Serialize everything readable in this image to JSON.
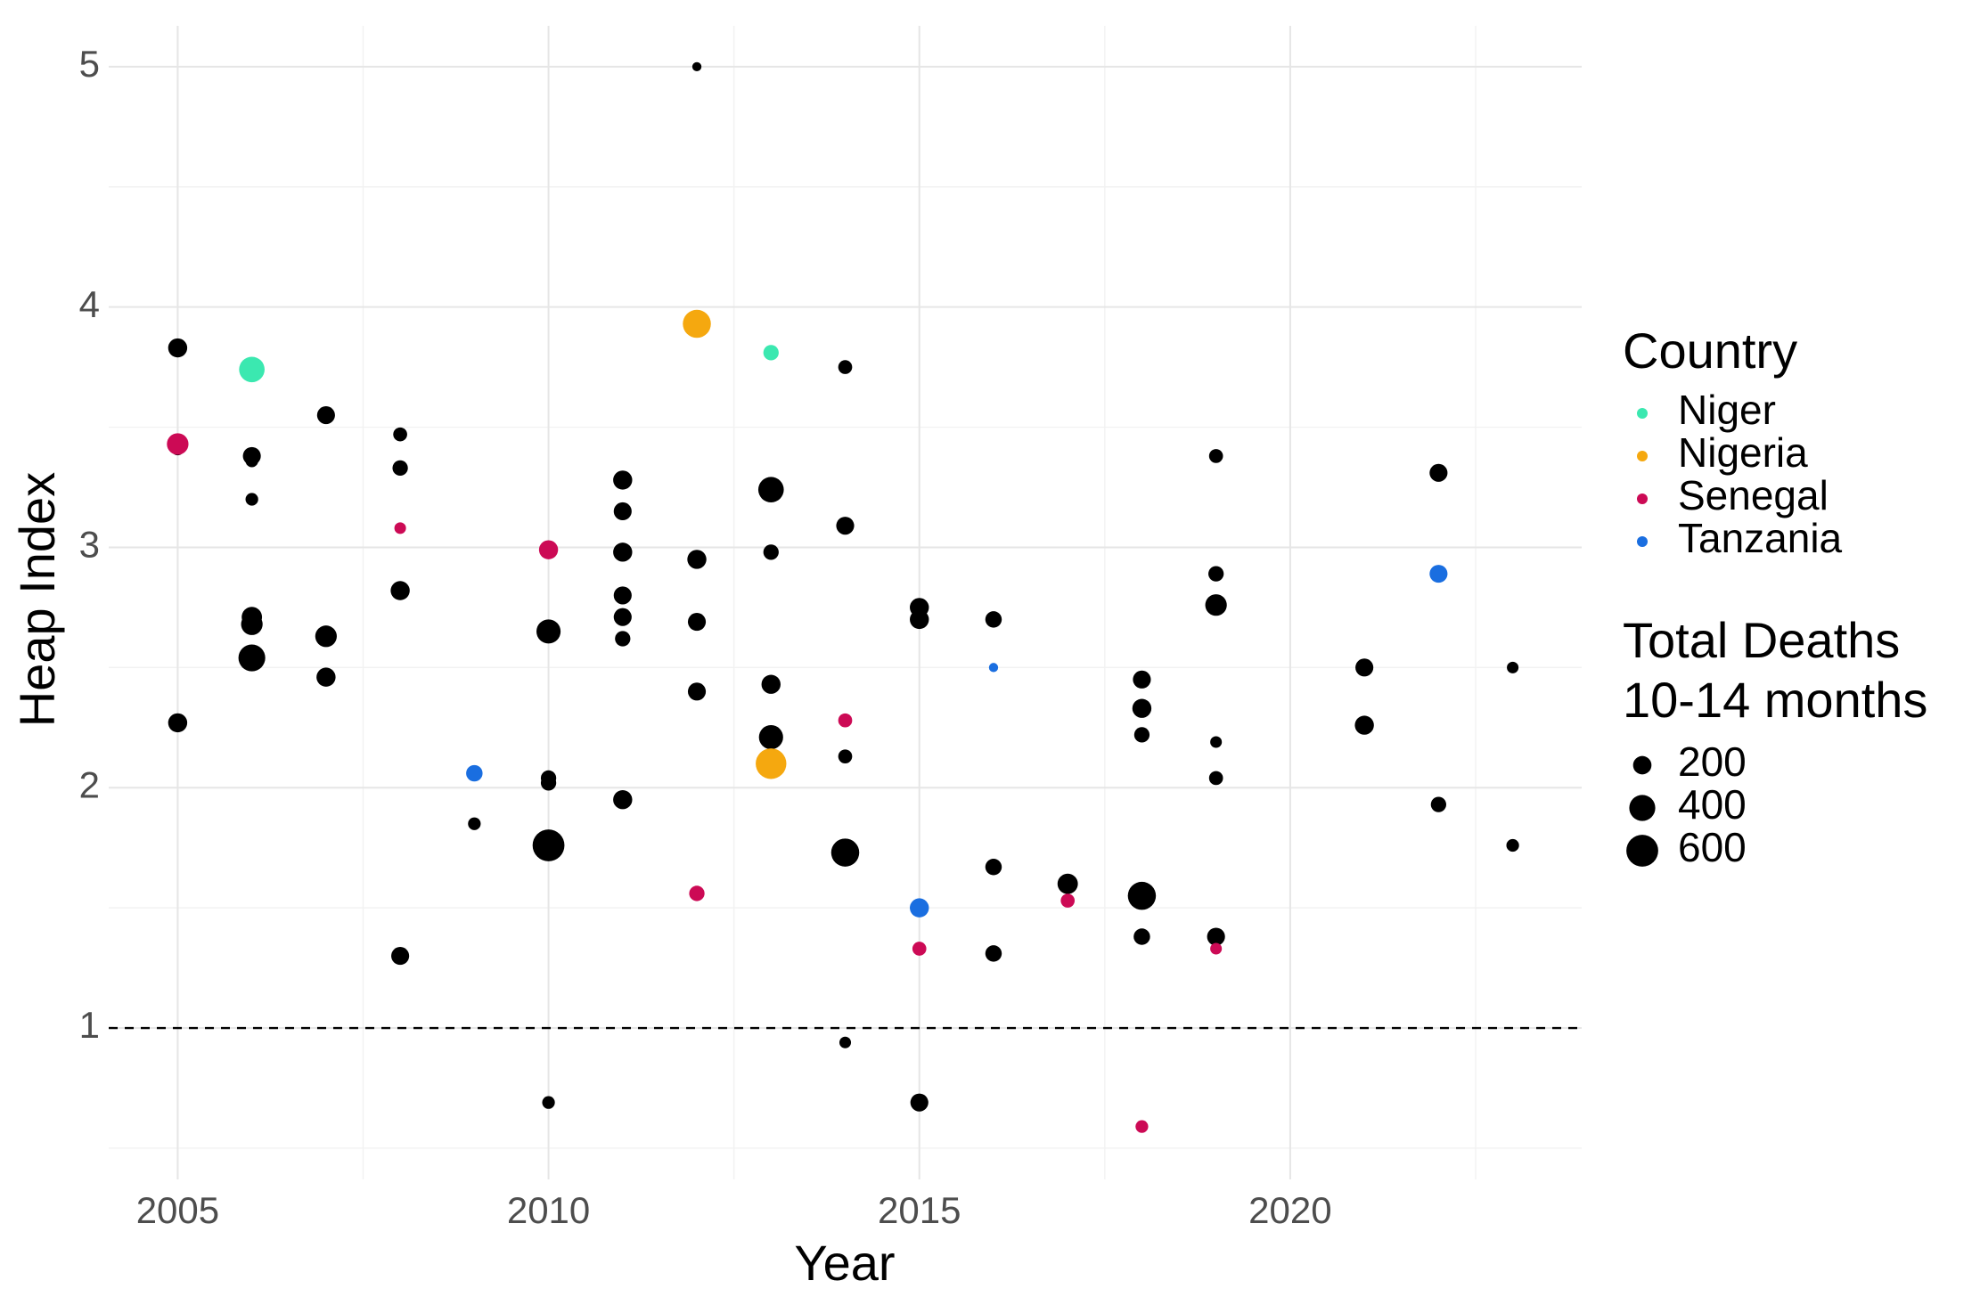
{
  "chart_data": {
    "type": "scatter",
    "x_label": "Year",
    "y_label": "Heap Index",
    "xlim": [
      2004.07,
      2023.93
    ],
    "ylim": [
      0.37,
      5.17
    ],
    "xticks": [
      2005,
      2010,
      2015,
      2020
    ],
    "yticks": [
      1,
      2,
      3,
      4,
      5
    ],
    "grid": true,
    "hline": 1,
    "legend_title": "Country",
    "size_legend": {
      "title": [
        "Total Deaths",
        "10-14 months"
      ],
      "values": [
        200,
        400,
        600
      ]
    },
    "series": [
      {
        "color": "#000000",
        "x": [
          2005,
          2005,
          2005,
          2006,
          2006,
          2006,
          2006,
          2006,
          2006,
          2007,
          2007,
          2007,
          2008,
          2008,
          2008,
          2008,
          2009,
          2010,
          2010,
          2010,
          2010,
          2010,
          2011,
          2011,
          2011,
          2011,
          2011,
          2011,
          2011,
          2012,
          2012,
          2012,
          2012,
          2013,
          2013,
          2013,
          2013,
          2014,
          2014,
          2014,
          2014,
          2014,
          2015,
          2015,
          2015,
          2016,
          2016,
          2016,
          2017,
          2018,
          2018,
          2018,
          2018,
          2018,
          2019,
          2019,
          2019,
          2019,
          2019,
          2019,
          2021,
          2021,
          2022,
          2022,
          2023,
          2023
        ],
        "values": [
          3.83,
          3.41,
          2.27,
          3.38,
          3.36,
          3.2,
          2.71,
          2.68,
          2.54,
          3.55,
          2.63,
          2.46,
          3.47,
          3.33,
          2.82,
          1.3,
          1.85,
          2.65,
          2.04,
          2.02,
          1.76,
          0.69,
          3.28,
          3.15,
          2.98,
          2.8,
          2.71,
          2.62,
          1.95,
          5.0,
          2.95,
          2.69,
          2.4,
          3.24,
          2.98,
          2.43,
          2.21,
          3.75,
          3.09,
          2.13,
          1.73,
          0.94,
          2.75,
          2.7,
          0.69,
          2.7,
          1.67,
          1.31,
          1.6,
          2.45,
          2.33,
          2.22,
          1.55,
          1.38,
          3.38,
          2.89,
          2.76,
          2.19,
          2.04,
          1.38,
          2.5,
          2.26,
          3.31,
          1.93,
          2.5,
          1.76
        ],
        "sizes": [
          215,
          100,
          215,
          190,
          95,
          95,
          245,
          275,
          425,
          190,
          275,
          215,
          115,
          140,
          215,
          190,
          95,
          345,
          140,
          140,
          600,
          95,
          215,
          190,
          215,
          190,
          190,
          140,
          215,
          50,
          215,
          190,
          190,
          385,
          140,
          215,
          345,
          115,
          190,
          115,
          465,
          80,
          215,
          215,
          190,
          160,
          160,
          160,
          245,
          190,
          215,
          140,
          465,
          160,
          115,
          140,
          275,
          80,
          115,
          190,
          190,
          215,
          190,
          140,
          80,
          95
        ]
      },
      {
        "name": "Niger",
        "color": "#3be8b0",
        "x": [
          2006,
          2013
        ],
        "values": [
          3.74,
          3.81
        ],
        "sizes": [
          385,
          140
        ]
      },
      {
        "name": "Nigeria",
        "color": "#f5a80f",
        "x": [
          2012,
          2013
        ],
        "values": [
          3.93,
          2.1
        ],
        "sizes": [
          465,
          555
        ]
      },
      {
        "name": "Senegal",
        "color": "#cc0a55",
        "x": [
          2005,
          2008,
          2010,
          2012,
          2014,
          2015,
          2017,
          2018,
          2019
        ],
        "values": [
          3.43,
          3.08,
          2.99,
          1.56,
          2.28,
          1.33,
          1.53,
          0.59,
          1.33
        ],
        "sizes": [
          275,
          80,
          215,
          140,
          115,
          115,
          115,
          95,
          80
        ]
      },
      {
        "name": "Tanzania",
        "color": "#1a6ee0",
        "x": [
          2009,
          2015,
          2016,
          2022
        ],
        "values": [
          2.06,
          1.5,
          2.5,
          2.89
        ],
        "sizes": [
          160,
          215,
          50,
          190
        ]
      }
    ]
  }
}
